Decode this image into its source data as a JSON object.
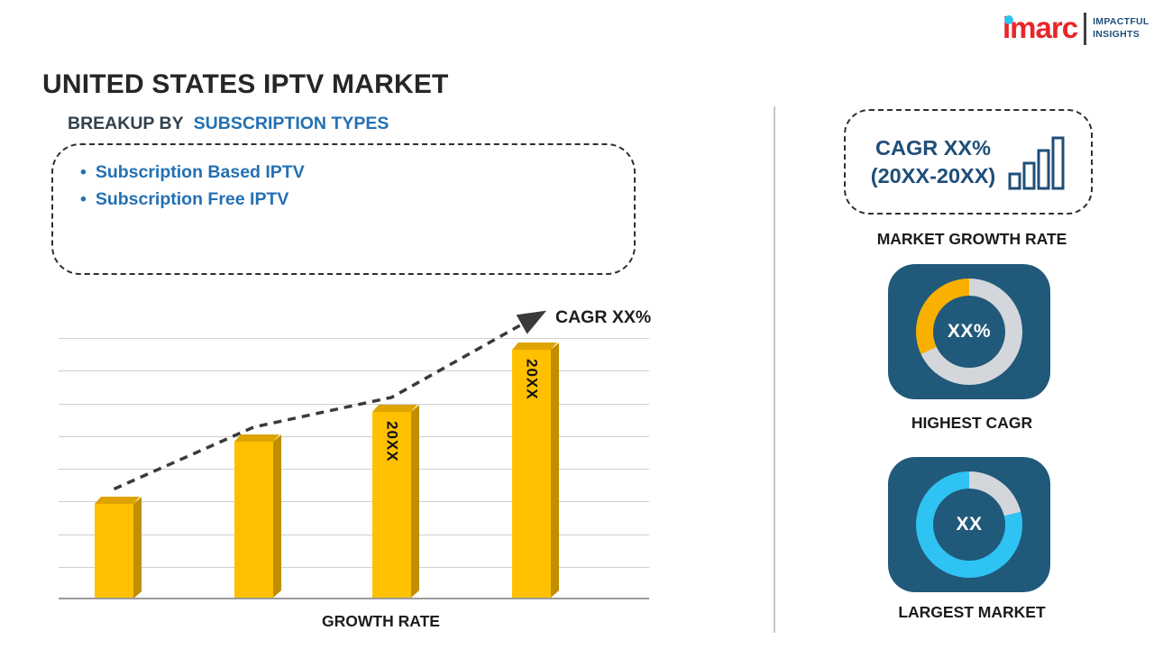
{
  "logo": {
    "brand": "imarc",
    "tagline_line1": "IMPACTFUL",
    "tagline_line2": "INSIGHTS"
  },
  "title": "UNITED STATES IPTV MARKET",
  "breakup": {
    "heading_prefix": "BREAKUP BY",
    "heading_highlight": "SUBSCRIPTION TYPES",
    "items": [
      "Subscription Based IPTV",
      "Subscription Free IPTV"
    ]
  },
  "chart_data": [
    {
      "type": "bar",
      "title": "GROWTH RATE",
      "xlabel": "GROWTH RATE",
      "bar_labels": [
        "",
        "",
        "20XX",
        "20XX"
      ],
      "values_relative": [
        38,
        63,
        75,
        100
      ],
      "ylim": [
        0,
        100
      ],
      "grid": true,
      "y_tick_labels_visible": false,
      "bar_color": "#FFC000",
      "trend": {
        "label": "CAGR XX%",
        "style": "dashed-arrow",
        "color": "#3A3A3A"
      }
    },
    {
      "type": "pie",
      "style": "donut",
      "title": "HIGHEST CAGR",
      "center_label": "XX%",
      "ring": {
        "base_color": "#D3D6DA",
        "accent_color": "#F9B000",
        "accent_start_deg": 245,
        "accent_end_deg": 360
      }
    },
    {
      "type": "pie",
      "style": "donut",
      "title": "LARGEST MARKET",
      "center_label": "XX",
      "ring": {
        "base_color": "#D3D6DA",
        "accent_color": "#2EC3F2",
        "accent_start_deg": 76,
        "accent_end_deg": 360
      }
    }
  ],
  "sidebar": {
    "cagr_line1": "CAGR XX%",
    "cagr_line2": "(20XX-20XX)",
    "labels": {
      "market_growth": "MARKET GROWTH RATE",
      "highest_cagr": "HIGHEST CAGR",
      "largest_market": "LARGEST MARKET"
    }
  },
  "colors": {
    "gold": "#FFC000",
    "gold_side": "#C18E00",
    "gold_top": "#DFA400",
    "navy_card": "#21597B",
    "navy_text": "#1F4E79",
    "blue_accent": "#2470B3",
    "red_brand": "#E8262A",
    "cyan": "#2EC3F2"
  }
}
